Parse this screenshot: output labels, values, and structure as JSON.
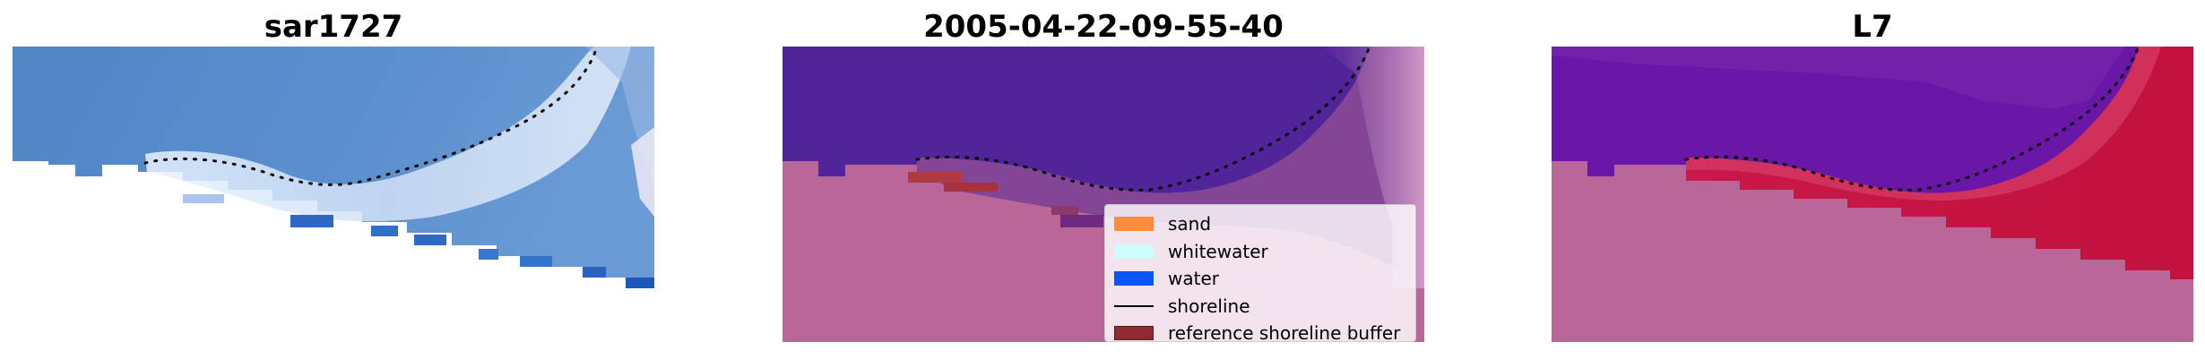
{
  "panels": [
    {
      "title": "sar1727"
    },
    {
      "title": "2005-04-22-09-55-40"
    },
    {
      "title": "L7"
    }
  ],
  "legend": {
    "items": [
      {
        "label": "sand",
        "color": "#ff8c3f",
        "kind": "patch"
      },
      {
        "label": "whitewater",
        "color": "#ccfcfc",
        "kind": "patch"
      },
      {
        "label": "water",
        "color": "#0a56f5",
        "kind": "patch"
      },
      {
        "label": "shoreline",
        "color": "#000000",
        "kind": "line"
      },
      {
        "label": "reference shoreline buffer",
        "color": "#8e2a30",
        "kind": "patch"
      }
    ]
  },
  "colors": {
    "sea_rgb": "#5b8ecb",
    "mask_pink": "#b96798",
    "water_purple": "#52249a",
    "ndwi_purple": "#6a16a6",
    "ndwi_red": "#c4143f"
  }
}
